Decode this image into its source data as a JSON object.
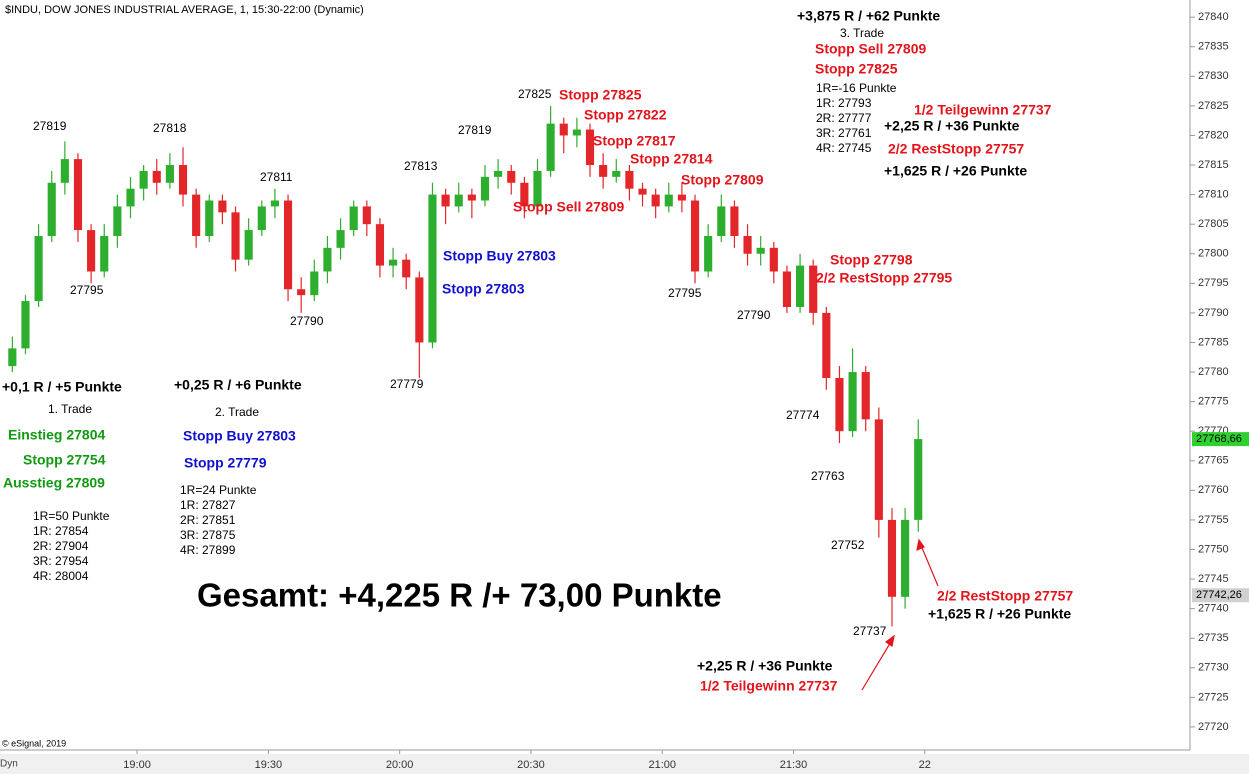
{
  "chart_data": {
    "type": "candlestick",
    "title": "$INDU, DOW JONES INDUSTRIAL AVERAGE, 1, 15:30-22:00 (Dynamic)",
    "footer": "© eSignal, 2019",
    "corner_label": "Dyn",
    "up_color": "#2eae2e",
    "down_color": "#e3262a",
    "grid": false,
    "x": [
      18.525,
      18.575,
      18.625,
      18.675,
      18.725,
      18.775,
      18.825,
      18.875,
      18.925,
      18.975,
      19.025,
      19.075,
      19.125,
      19.175,
      19.225,
      19.275,
      19.325,
      19.375,
      19.425,
      19.475,
      19.525,
      19.575,
      19.625,
      19.675,
      19.725,
      19.775,
      19.825,
      19.875,
      19.925,
      19.975,
      20.025,
      20.075,
      20.125,
      20.175,
      20.225,
      20.275,
      20.325,
      20.375,
      20.425,
      20.475,
      20.525,
      20.575,
      20.625,
      20.675,
      20.725,
      20.775,
      20.825,
      20.875,
      20.925,
      20.975,
      21.025,
      21.075,
      21.125,
      21.175,
      21.225,
      21.275,
      21.325,
      21.375,
      21.425,
      21.475,
      21.525,
      21.575,
      21.625,
      21.675,
      21.725,
      21.775,
      21.825,
      21.875,
      21.925,
      21.975
    ],
    "open": [
      27781,
      27784,
      27792,
      27803,
      27812,
      27816,
      27804,
      27797,
      27803,
      27808,
      27811,
      27814,
      27812,
      27815,
      27810,
      27803,
      27809,
      27807,
      27799,
      27804,
      27808,
      27809,
      27794,
      27793,
      27797,
      27801,
      27804,
      27808,
      27805,
      27798,
      27799,
      27796,
      27785,
      27810,
      27808,
      27810,
      27809,
      27813,
      27814,
      27812,
      27808,
      27814,
      27822,
      27820,
      27821,
      27815,
      27813,
      27814,
      27811,
      27810,
      27808,
      27810,
      27809,
      27797,
      27803,
      27808,
      27803,
      27800,
      27801,
      27797,
      27791,
      27798,
      27790,
      27779,
      27770,
      27780,
      27772,
      27755,
      27742,
      27755
    ],
    "high": [
      27786,
      27793,
      27805,
      27814,
      27819,
      27817,
      27805,
      27805,
      27810,
      27813,
      27815,
      27816,
      27817,
      27818,
      27811,
      27810,
      27810,
      27808,
      27806,
      27809,
      27811,
      27810,
      27796,
      27799,
      27803,
      27806,
      27809,
      27809,
      27806,
      27801,
      27800,
      27797,
      27812,
      27811,
      27812,
      27811,
      27815,
      27816,
      27815,
      27813,
      27816,
      27825,
      27823,
      27823,
      27822,
      27817,
      27816,
      27815,
      27812,
      27811,
      27812,
      27812,
      27810,
      27805,
      27810,
      27809,
      27805,
      27803,
      27802,
      27798,
      27800,
      27799,
      27791,
      27781,
      27784,
      27781,
      27774,
      27757,
      27757,
      27772
    ],
    "low": [
      27780,
      27783,
      27791,
      27802,
      27810,
      27802,
      27795,
      27796,
      27801,
      27806,
      27809,
      27810,
      27811,
      27808,
      27801,
      27802,
      27805,
      27797,
      27798,
      27803,
      27806,
      27792,
      27790,
      27792,
      27795,
      27799,
      27803,
      27803,
      27796,
      27796,
      27794,
      27779,
      27784,
      27805,
      27807,
      27806,
      27808,
      27811,
      27810,
      27806,
      27807,
      27813,
      27817,
      27818,
      27813,
      27811,
      27812,
      27809,
      27808,
      27806,
      27807,
      27807,
      27795,
      27796,
      27802,
      27801,
      27798,
      27798,
      27795,
      27790,
      27790,
      27788,
      27777,
      27768,
      27769,
      27770,
      27752,
      27737,
      27740,
      27753
    ],
    "close": [
      27784,
      27792,
      27803,
      27812,
      27816,
      27804,
      27797,
      27803,
      27808,
      27811,
      27814,
      27812,
      27815,
      27810,
      27803,
      27809,
      27807,
      27799,
      27804,
      27808,
      27809,
      27794,
      27793,
      27797,
      27801,
      27804,
      27808,
      27805,
      27798,
      27799,
      27796,
      27785,
      27810,
      27808,
      27810,
      27809,
      27813,
      27814,
      27812,
      27808,
      27814,
      27822,
      27820,
      27821,
      27815,
      27813,
      27814,
      27811,
      27810,
      27808,
      27810,
      27809,
      27797,
      27803,
      27808,
      27803,
      27800,
      27801,
      27797,
      27791,
      27798,
      27790,
      27779,
      27770,
      27780,
      27772,
      27755,
      27742,
      27755,
      27768.66
    ],
    "xlim": [
      18.478,
      23.01
    ],
    "xticks": [
      {
        "value": 19,
        "label": "19:00"
      },
      {
        "value": 19.5,
        "label": "19:30"
      },
      {
        "value": 20,
        "label": "20:00"
      },
      {
        "value": 20.5,
        "label": "20:30"
      },
      {
        "value": 21,
        "label": "21:00"
      },
      {
        "value": 21.5,
        "label": "21:30"
      },
      {
        "value": 22,
        "label": "22"
      }
    ],
    "ylim": [
      27716.1,
      27842.9
    ],
    "yticks": [
      27720,
      27725,
      27730,
      27735,
      27740,
      27745,
      27750,
      27755,
      27760,
      27765,
      27770,
      27775,
      27780,
      27785,
      27790,
      27795,
      27800,
      27805,
      27810,
      27815,
      27820,
      27825,
      27830,
      27835,
      27840
    ],
    "price_tags": [
      {
        "value": 27768.66,
        "label": "27768,66",
        "color": "#2ed12e"
      },
      {
        "value": 27742.26,
        "label": "27742,26",
        "color": "#d0d0d0"
      }
    ],
    "annotations": [
      "27819",
      "27818",
      "27811",
      "27813",
      "27819",
      "27825",
      "27795",
      "27790",
      "27779",
      "27795",
      "27790",
      "27774",
      "27763",
      "27752",
      "27737",
      "Stopp 27825",
      "Stopp 27822",
      "Stopp 27817",
      "Stopp 27814",
      "Stopp 27809",
      "Stopp Sell 27809",
      "Stopp Sell 27809",
      "Stopp 27825",
      "1/2 Teilgewinn 27737",
      "2/2 RestStopp 27757",
      "Stopp 27798",
      "2/2 RestStopp 27795",
      "2/2 RestStopp 27757",
      "1/2 Teilgewinn 27737",
      "+3,875 R / +62 Punkte",
      "+2,25 R / +36 Punkte",
      "+1,625 R / +26 Punkte",
      "+0,1 R / +5 Punkte",
      "+0,25 R / +6 Punkte",
      "+1,625 R / +26 Punkte",
      "+2,25 R / +36 Punkte",
      "Stopp Buy 27803",
      "Stopp 27803",
      "Stopp Buy 27803",
      "Stopp 27779",
      "Einstieg 27804",
      "Stopp 27754",
      "Ausstieg 27809",
      "3. Trade",
      "1R=-16 Punkte",
      "1R: 27793",
      "2R: 27777",
      "3R: 27761",
      "4R: 27745",
      "1. Trade",
      "2. Trade",
      "1R=24 Punkte",
      "1R: 27827",
      "2R: 27851",
      "3R: 27875",
      "4R: 27899",
      "1R=50 Punkte",
      "1R: 27854",
      "2R: 27904",
      "3R: 27954",
      "4R: 28004",
      "Gesamt: +4,225 R /+ 73,00 Punkte"
    ]
  }
}
